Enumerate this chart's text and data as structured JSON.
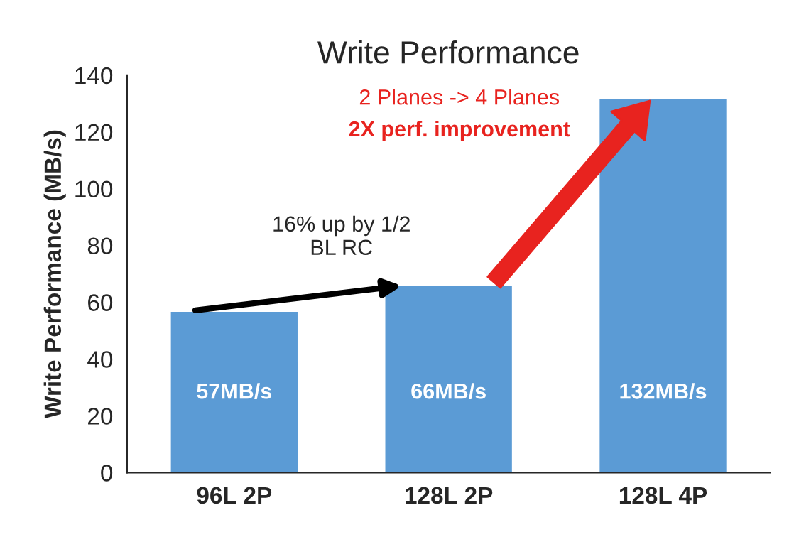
{
  "chart_data": {
    "type": "bar",
    "title": "Write Performance",
    "ylabel": "Write Performance (MB/s)",
    "categories": [
      "96L 2P",
      "128L 2P",
      "128L 4P"
    ],
    "values": [
      57,
      66,
      132
    ],
    "value_labels": [
      "57MB/s",
      "66MB/s",
      "132MB/s"
    ],
    "color": "#5b9bd5",
    "ylim": [
      0,
      140
    ],
    "yticks": [
      0,
      20,
      40,
      60,
      80,
      100,
      120,
      140
    ],
    "grid": false,
    "legend": false,
    "annotations": [
      "16% up by 1/2\nBL RC",
      "2 Planes -> 4 Planes",
      "2X perf. improvement"
    ]
  }
}
